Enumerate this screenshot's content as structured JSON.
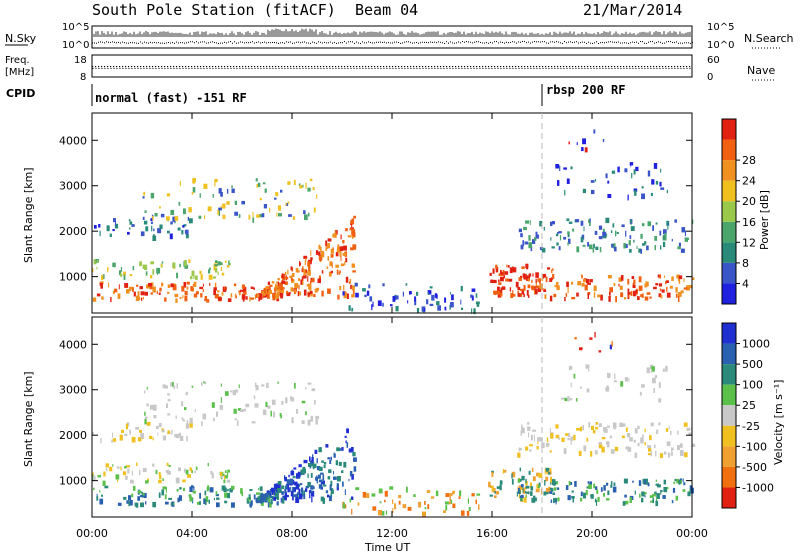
{
  "header": {
    "station": "South Pole Station (fitACF)",
    "beam": "Beam 04",
    "date": "21/Mar/2014"
  },
  "top_panels": {
    "nsky_label": "N.Sky",
    "nsky_ticks": [
      "10^5",
      "10^0"
    ],
    "nsearch_label": "N.Search",
    "nsearch_ticks": [
      "10^5",
      "10^0"
    ],
    "freq_label": "Freq.",
    "freq_unit": "[MHz]",
    "freq_ticks": [
      "18",
      "8"
    ],
    "nave_label": "Nave",
    "nave_ticks": [
      "60",
      "0"
    ],
    "cpid_label": "CPID"
  },
  "modes": [
    {
      "label": "normal (fast) -151 RF",
      "start_hour": 0
    },
    {
      "label": "rbsp 200 RF",
      "start_hour": 18
    }
  ],
  "chart_data": [
    {
      "type": "heatmap",
      "name": "power",
      "ylabel": "Slant Range [km]",
      "xlabel": "Time UT",
      "xlim_hours": [
        0,
        24
      ],
      "ylim_km": [
        200,
        4600
      ],
      "y_ticks": [
        "1000",
        "2000",
        "3000",
        "4000"
      ],
      "x_ticks": [
        "00:00",
        "04:00",
        "08:00",
        "12:00",
        "16:00",
        "20:00",
        "00:00"
      ],
      "colorbar_label": "Power [dB]",
      "colorbar_ticks": [
        "4",
        "8",
        "12",
        "16",
        "20",
        "24",
        "28"
      ],
      "colorbar_colors": [
        "#2020e0",
        "#3a55c8",
        "#2a8a7a",
        "#4aa56a",
        "#9ac84a",
        "#f0c020",
        "#f09020",
        "#f06010",
        "#e02010"
      ]
    },
    {
      "type": "heatmap",
      "name": "velocity",
      "ylabel": "Slant Range [km]",
      "xlabel": "Time UT",
      "xlim_hours": [
        0,
        24
      ],
      "ylim_km": [
        200,
        4600
      ],
      "y_ticks": [
        "1000",
        "2000",
        "3000",
        "4000"
      ],
      "x_ticks": [
        "00:00",
        "04:00",
        "08:00",
        "12:00",
        "16:00",
        "20:00",
        "00:00"
      ],
      "colorbar_label": "Velocity [m s⁻¹]",
      "colorbar_ticks": [
        "1000",
        "500",
        "100",
        "25",
        "-25",
        "-100",
        "-500",
        "-1000"
      ],
      "colorbar_colors": [
        "#2030d0",
        "#2a60b0",
        "#2a8a7a",
        "#5ac04a",
        "#c8c8c8",
        "#f0c020",
        "#f0a030",
        "#f07010",
        "#e02010"
      ]
    }
  ],
  "time_axis_label": "Time UT"
}
